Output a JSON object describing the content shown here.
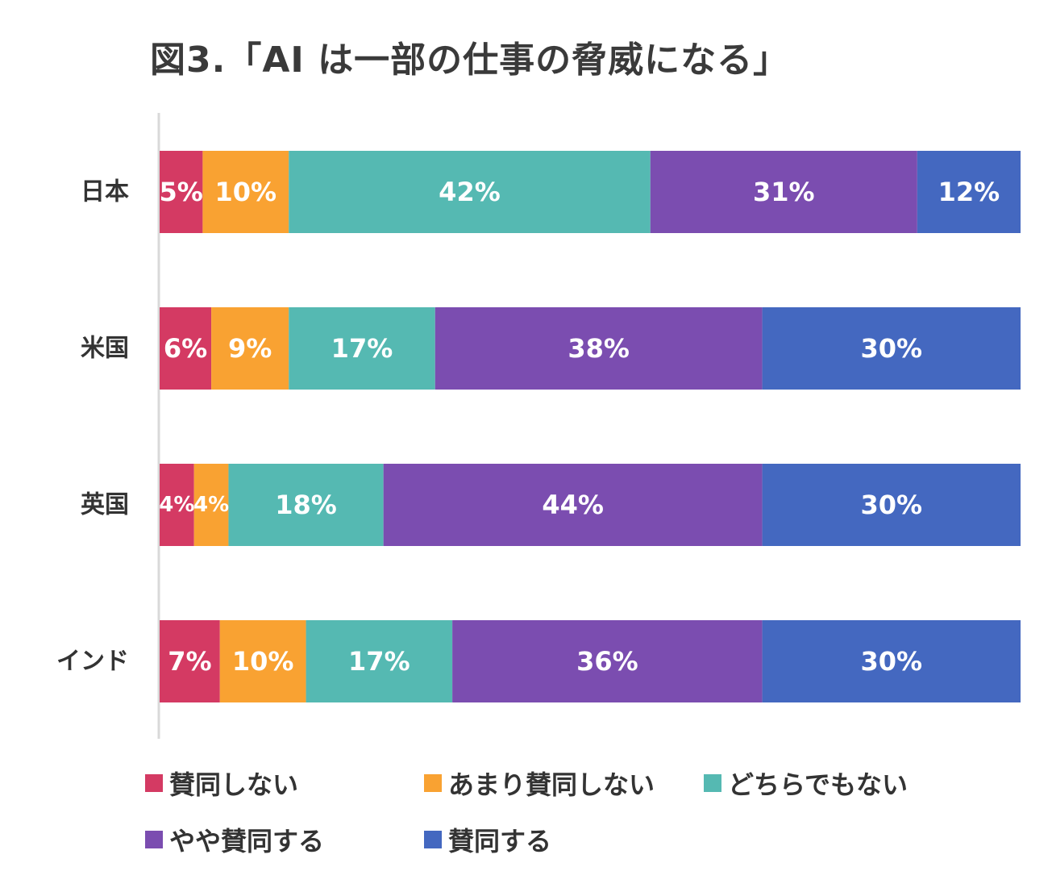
{
  "title": "図3.「AI は一部の仕事の脅威になる」",
  "chart_data": {
    "type": "bar",
    "orientation": "horizontal",
    "stacked": true,
    "categories": [
      "日本",
      "米国",
      "英国",
      "インド"
    ],
    "series": [
      {
        "name": "賛同しない",
        "color": "#d43a63",
        "values": [
          5,
          6,
          4,
          7
        ]
      },
      {
        "name": "あまり賛同しない",
        "color": "#f9a232",
        "values": [
          10,
          9,
          4,
          10
        ]
      },
      {
        "name": "どちらでもない",
        "color": "#55b9b2",
        "values": [
          42,
          17,
          18,
          17
        ]
      },
      {
        "name": "やや賛同する",
        "color": "#7b4db0",
        "values": [
          31,
          38,
          44,
          36
        ]
      },
      {
        "name": "賛同する",
        "color": "#4468c0",
        "values": [
          12,
          30,
          30,
          30
        ]
      }
    ],
    "value_suffix": "%",
    "xlim": [
      0,
      100
    ],
    "grid": false,
    "legend_position": "bottom"
  }
}
